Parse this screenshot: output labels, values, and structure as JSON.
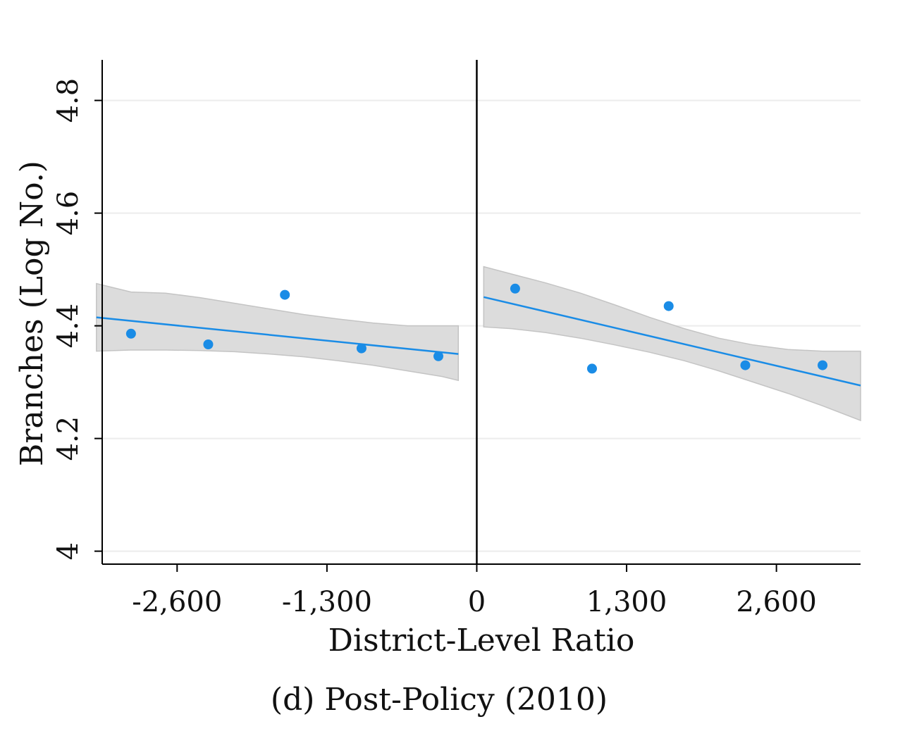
{
  "caption": "(d)  Post-Policy (2010)",
  "chart_data": {
    "type": "scatter",
    "xlabel": "District-Level Ratio",
    "ylabel": "Branches (Log No.)",
    "xlim": [
      -3250,
      3330
    ],
    "ylim": [
      3.977,
      4.872
    ],
    "x_ticks": [
      -2600,
      -1300,
      0,
      1300,
      2600
    ],
    "x_tick_labels": [
      "-2,600",
      "-1,300",
      "0",
      "1,300",
      "2,600"
    ],
    "y_ticks": [
      4.0,
      4.2,
      4.4,
      4.6,
      4.8
    ],
    "y_tick_labels": [
      "4",
      "4.2",
      "4.4",
      "4.6",
      "4.8"
    ],
    "grid": "horizontal",
    "cutoff": 0,
    "colors": {
      "points": "#1a8ce6",
      "fit": "#1a8ce6",
      "band": "#dcdcdc",
      "band_edge": "#c4c4c4"
    },
    "series": [
      {
        "side": "left",
        "points": [
          {
            "x": -3000,
            "y": 4.386
          },
          {
            "x": -2330,
            "y": 4.367
          },
          {
            "x": -1665,
            "y": 4.455
          },
          {
            "x": -1000,
            "y": 4.36
          },
          {
            "x": -333,
            "y": 4.346
          }
        ],
        "fit": [
          {
            "x": -3300,
            "y": 4.415
          },
          {
            "x": -160,
            "y": 4.35
          }
        ],
        "ci": {
          "x": [
            -3300,
            -3000,
            -2700,
            -2400,
            -2100,
            -1800,
            -1500,
            -1200,
            -900,
            -600,
            -300,
            -160
          ],
          "lower": [
            4.355,
            4.357,
            4.357,
            4.356,
            4.354,
            4.35,
            4.345,
            4.338,
            4.33,
            4.32,
            4.31,
            4.303
          ],
          "upper": [
            4.475,
            4.46,
            4.458,
            4.45,
            4.44,
            4.43,
            4.42,
            4.412,
            4.405,
            4.4,
            4.4,
            4.4
          ]
        }
      },
      {
        "side": "right",
        "points": [
          {
            "x": 333,
            "y": 4.466
          },
          {
            "x": 1000,
            "y": 4.324
          },
          {
            "x": 1665,
            "y": 4.435
          },
          {
            "x": 2330,
            "y": 4.33
          },
          {
            "x": 3000,
            "y": 4.33
          }
        ],
        "fit": [
          {
            "x": 60,
            "y": 4.451
          },
          {
            "x": 3330,
            "y": 4.294
          }
        ],
        "ci": {
          "x": [
            60,
            300,
            600,
            900,
            1200,
            1500,
            1800,
            2100,
            2400,
            2700,
            3000,
            3330
          ],
          "lower": [
            4.398,
            4.395,
            4.388,
            4.378,
            4.366,
            4.353,
            4.338,
            4.32,
            4.3,
            4.28,
            4.258,
            4.232
          ],
          "upper": [
            4.505,
            4.492,
            4.476,
            4.458,
            4.437,
            4.415,
            4.395,
            4.378,
            4.366,
            4.358,
            4.355,
            4.355
          ]
        }
      }
    ]
  }
}
